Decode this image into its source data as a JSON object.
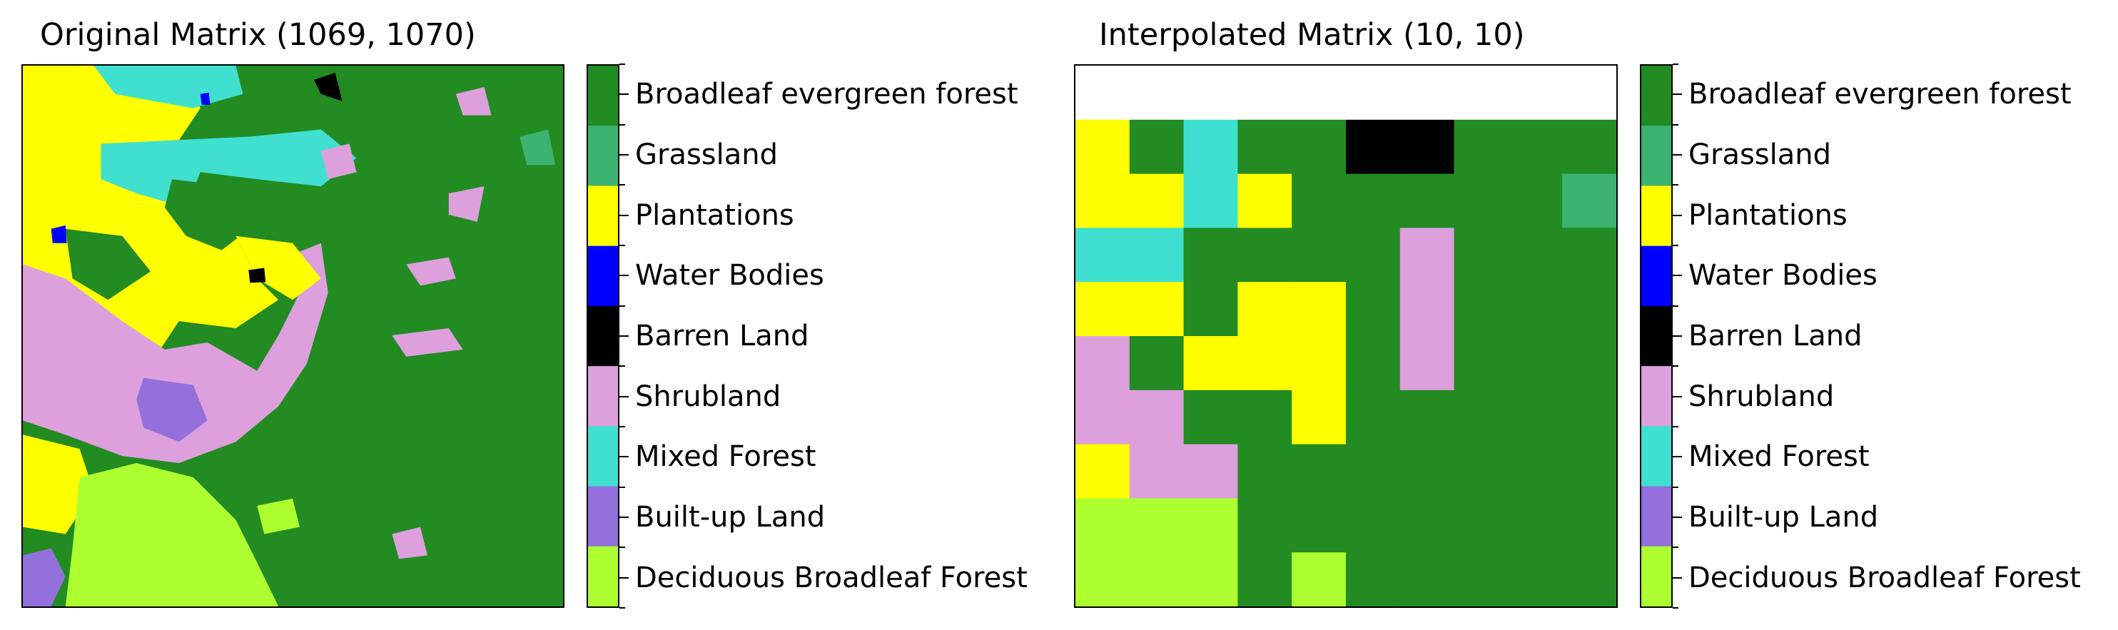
{
  "classes": [
    {
      "label": "Broadleaf evergreen forest",
      "color": "#228B22"
    },
    {
      "label": "Grassland",
      "color": "#3CB371"
    },
    {
      "label": "Plantations",
      "color": "#FFFF00"
    },
    {
      "label": "Water Bodies",
      "color": "#0000FF"
    },
    {
      "label": "Barren Land",
      "color": "#000000"
    },
    {
      "label": "Shrubland",
      "color": "#DDA0DD"
    },
    {
      "label": "Mixed Forest",
      "color": "#40E0D0"
    },
    {
      "label": "Built-up Land",
      "color": "#9370DB"
    },
    {
      "label": "Deciduous Broadleaf Forest",
      "color": "#ADFF2F"
    }
  ],
  "chart_data": [
    {
      "type": "heatmap",
      "title": "Original Matrix (1069, 1070)",
      "shape": [
        1069,
        1070
      ],
      "grid": false
    },
    {
      "type": "heatmap",
      "title": "Interpolated Matrix (10, 10)",
      "shape": [
        10,
        10
      ],
      "grid": false,
      "values": [
        [
          null,
          null,
          null,
          null,
          null,
          null,
          null,
          null,
          null,
          null
        ],
        [
          2,
          0,
          6,
          0,
          0,
          4,
          4,
          0,
          0,
          0
        ],
        [
          2,
          2,
          6,
          2,
          0,
          0,
          0,
          0,
          0,
          1
        ],
        [
          6,
          6,
          0,
          0,
          0,
          0,
          5,
          0,
          0,
          0
        ],
        [
          2,
          2,
          0,
          2,
          2,
          0,
          5,
          0,
          0,
          0
        ],
        [
          5,
          0,
          2,
          2,
          2,
          0,
          5,
          0,
          0,
          0
        ],
        [
          5,
          5,
          0,
          0,
          2,
          0,
          0,
          0,
          0,
          0
        ],
        [
          2,
          5,
          5,
          0,
          0,
          0,
          0,
          0,
          0,
          0
        ],
        [
          8,
          8,
          8,
          0,
          0,
          0,
          0,
          0,
          0,
          0
        ],
        [
          8,
          8,
          8,
          0,
          8,
          0,
          0,
          0,
          0,
          0
        ]
      ]
    }
  ]
}
